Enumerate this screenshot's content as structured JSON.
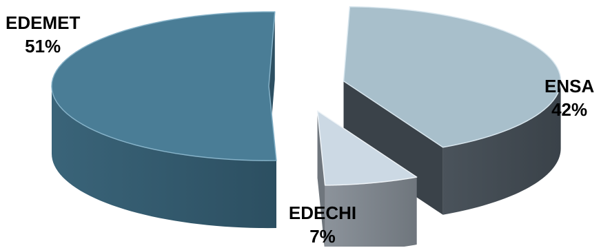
{
  "chart_data": {
    "type": "pie",
    "style": "3d-exploded",
    "title": "",
    "slices": [
      {
        "name": "EDEMET",
        "value": 51,
        "label": "51%",
        "colors": {
          "top": "#4a7d96",
          "side": "#3a6479",
          "side_dark": "#2c4f61",
          "edge": "#86b2c8"
        }
      },
      {
        "name": "ENSA",
        "value": 42,
        "label": "42%",
        "colors": {
          "top": "#a8bfcb",
          "side": "#4a535b",
          "side_dark": "#3a4249",
          "edge": "#d8e6ee"
        }
      },
      {
        "name": "EDECHI",
        "value": 7,
        "label": "7%",
        "colors": {
          "top": "#ccd9e4",
          "side": "#8c939b",
          "side_dark": "#6f767d",
          "edge": "#eef3f7"
        }
      }
    ]
  }
}
